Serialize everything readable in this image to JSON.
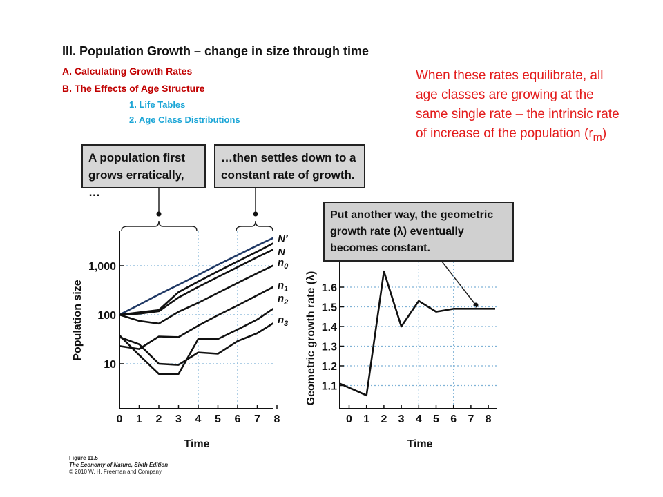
{
  "slide": {
    "title": "III. Population Growth – change in size through time",
    "outline": [
      {
        "text": "A. Calculating  Growth Rates",
        "level": 1
      },
      {
        "text": "B. The Effects of Age Structure",
        "level": 1
      },
      {
        "text": "1. Life Tables",
        "level": 2
      },
      {
        "text": "2. Age Class Distributions",
        "level": 2
      }
    ],
    "side_note": {
      "text": "When these rates equilibrate, all age classes are growing at the same single rate – the intrinsic rate of increase of the population (r",
      "subscript": "m",
      "suffix": ")"
    },
    "callouts": {
      "erratic": "A population first grows erratically, …",
      "constant": "…then settles down to a constant rate of growth.",
      "lambda": "Put another way, the geometric growth rate (λ) eventually becomes constant."
    },
    "caption": {
      "figure": "Figure 11.5",
      "book": "The Economy of Nature, Sixth Edition",
      "copyright": "© 2010 W. H. Freeman and Company"
    },
    "colors": {
      "title": "#111111",
      "outline_level1": "#c00000",
      "outline_level2": "#1aa5d6",
      "side_note": "#e31b1b",
      "callout_fill": "#d6d6d6",
      "n_prime_line": "#1f3864",
      "grid": "#7fb2d6"
    }
  },
  "chart_data": [
    {
      "type": "line",
      "scale": "log",
      "xlabel": "Time",
      "ylabel": "Population size",
      "x": [
        0,
        1,
        2,
        3,
        4,
        5,
        6,
        7,
        8
      ],
      "y_ticks": [
        10,
        100,
        1000
      ],
      "y_tick_labels": [
        "10",
        "100",
        "1,000"
      ],
      "ylim": [
        1,
        3000
      ],
      "grid": "dotted",
      "series": [
        {
          "name": "N′",
          "color": "#1f3864",
          "values": [
            100,
            160,
            260,
            410,
            650,
            1050,
            1650,
            2600,
            4000
          ]
        },
        {
          "name": "N",
          "color": "#111111",
          "values": [
            100,
            112,
            125,
            290,
            475,
            770,
            1230,
            1950,
            3150
          ]
        },
        {
          "name": "n0",
          "color": "#111111",
          "values": [
            100,
            105,
            118,
            225,
            370,
            590,
            940,
            1500,
            2330
          ]
        },
        {
          "name": "n1",
          "color": "#111111",
          "values": [
            100,
            75,
            66,
            115,
            175,
            280,
            445,
            705,
            1100
          ]
        },
        {
          "name": "n2",
          "color": "#111111",
          "values": [
            23,
            20,
            36,
            35,
            60,
            98,
            155,
            250,
            405
          ]
        },
        {
          "name": "n3",
          "color": "#111111",
          "values": [
            35,
            25,
            10,
            9.5,
            17,
            16,
            29,
            42,
            75
          ]
        },
        {
          "name": "",
          "color": "#111111",
          "values": [
            38,
            15,
            6.2,
            6.2,
            32,
            32,
            50,
            80,
            150
          ]
        }
      ]
    },
    {
      "type": "line",
      "xlabel": "Time",
      "ylabel": "Geometric growth rate (λ)",
      "x": [
        0,
        1,
        2,
        3,
        4,
        5,
        6,
        7,
        8
      ],
      "y_ticks": [
        1.1,
        1.2,
        1.3,
        1.4,
        1.5,
        1.6
      ],
      "ylim": [
        1.0,
        1.72
      ],
      "grid": "dotted",
      "series": [
        {
          "name": "",
          "values": [
            1.11,
            1.05,
            1.68,
            1.4,
            1.53,
            1.475,
            1.49,
            1.49,
            1.49
          ]
        }
      ]
    }
  ]
}
